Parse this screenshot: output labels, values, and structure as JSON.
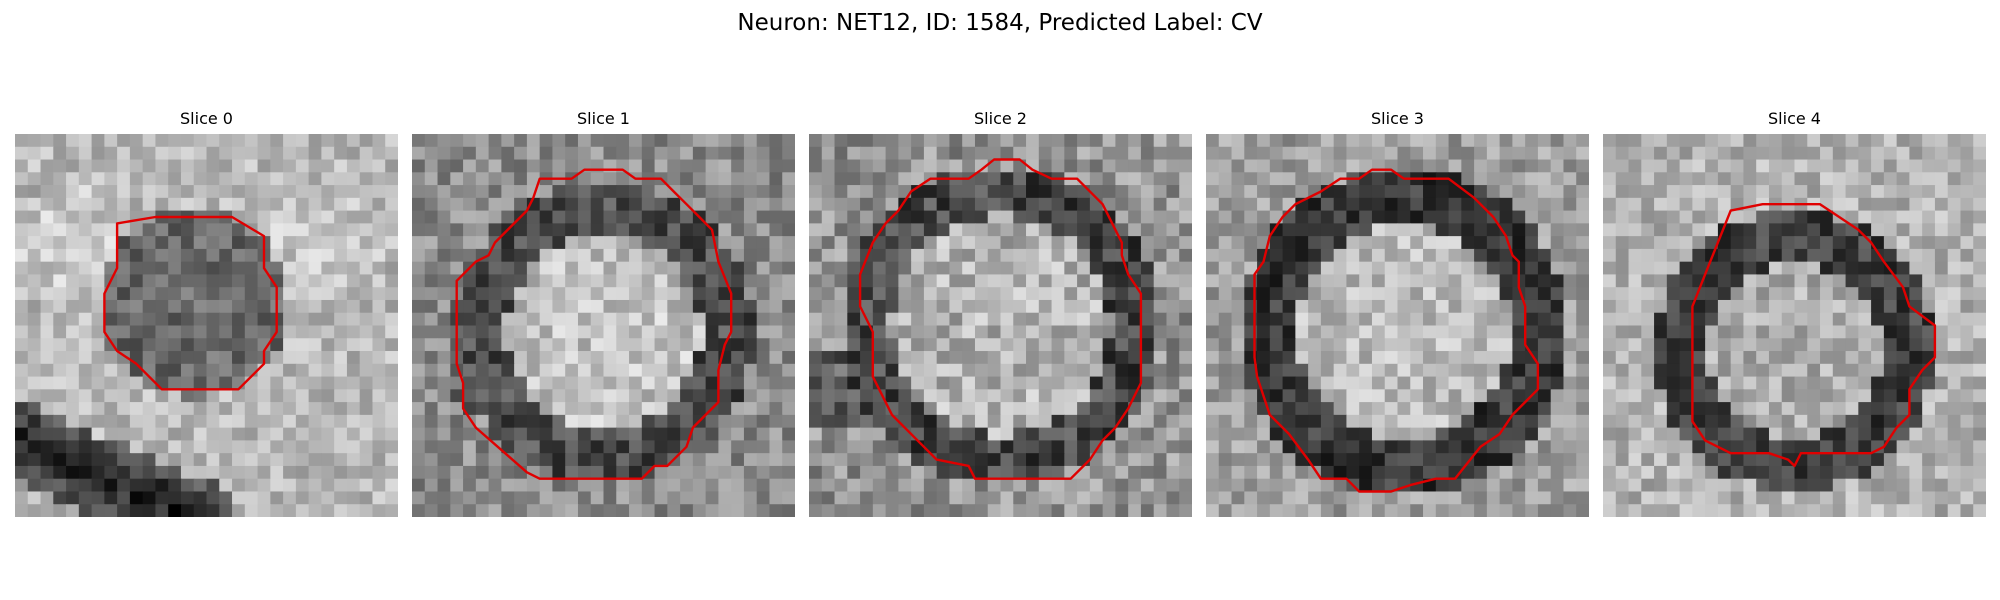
{
  "figure": {
    "title": "Neuron: NET12, ID: 1584, Predicted Label: CV",
    "outline_color": "#e00000",
    "colormap": "grayscale",
    "image_grid": "30x30 pixel tiles"
  },
  "panels": [
    {
      "title": "Slice 0",
      "seed": 11,
      "feature": "small dark round blob with lighter blobs at the right and a dark curved band at the bottom left"
    },
    {
      "title": "Slice 1",
      "seed": 23,
      "feature": "large round bright interior with a dark rim"
    },
    {
      "title": "Slice 2",
      "seed": 37,
      "feature": "large round textured interior with a dark rim and dark patch on the left edge"
    },
    {
      "title": "Slice 3",
      "seed": 41,
      "feature": "large round textured interior with a thick dark rim, darkest at the bottom"
    },
    {
      "title": "Slice 4",
      "seed": 53,
      "feature": "round interior with a dark rim on the left and top, lighter surroundings"
    }
  ]
}
